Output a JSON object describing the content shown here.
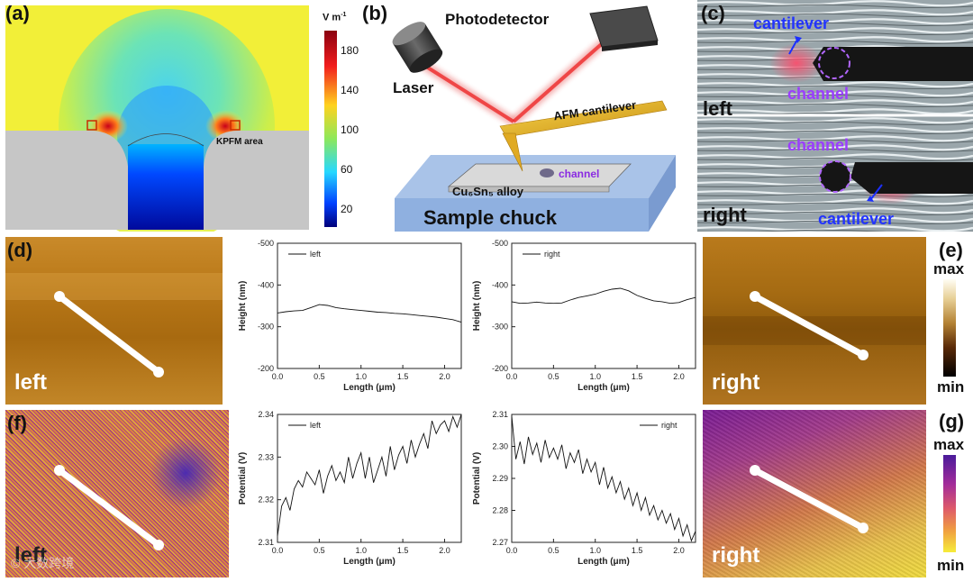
{
  "panel_a": {
    "label": "(a)",
    "unit": "V m",
    "unit_exp": "-1",
    "colorbar_ticks": [
      "180",
      "140",
      "100",
      "60",
      "20"
    ],
    "area_label": "KPFM area"
  },
  "panel_b": {
    "label": "(b)",
    "photodetector": "Photodetector",
    "laser": "Laser",
    "afm": "AFM cantilever",
    "alloy": "Cu₆Sn₅ alloy",
    "channel": "channel",
    "chuck": "Sample chuck"
  },
  "panel_c": {
    "label": "(c)",
    "top_cantilever": "cantilever",
    "top_channel": "channel",
    "top_side": "left",
    "bottom_channel": "channel",
    "bottom_cantilever": "cantilever",
    "bottom_side": "right"
  },
  "panel_d": {
    "label": "(d)",
    "side": "left"
  },
  "panel_e": {
    "label": "(e)",
    "side": "right",
    "scale_max": "max",
    "scale_min": "min"
  },
  "panel_f": {
    "label": "(f)",
    "side": "left",
    "watermark": "© 大数跨境"
  },
  "panel_g": {
    "label": "(g)",
    "side": "right",
    "scale_max": "max",
    "scale_min": "min"
  },
  "chart_data": [
    {
      "id": "height-left",
      "type": "line",
      "series_name": "left",
      "xlabel": "Length (μm)",
      "ylabel": "Height (nm)",
      "xlim": [
        0,
        2.2
      ],
      "ylim": [
        -500,
        -200
      ],
      "x_ticks": [
        "0.0",
        "0.5",
        "1.0",
        "1.5",
        "2.0"
      ],
      "y_ticks": [
        "-500",
        "-400",
        "-300",
        "-200"
      ],
      "x": [
        0,
        0.1,
        0.2,
        0.3,
        0.4,
        0.5,
        0.6,
        0.7,
        0.8,
        0.9,
        1.0,
        1.1,
        1.2,
        1.3,
        1.4,
        1.5,
        1.6,
        1.7,
        1.8,
        1.9,
        2.0,
        2.1,
        2.2
      ],
      "values": [
        -333,
        -336,
        -338,
        -339,
        -346,
        -353,
        -351,
        -346,
        -343,
        -341,
        -339,
        -337,
        -335,
        -334,
        -332,
        -331,
        -329,
        -327,
        -325,
        -323,
        -320,
        -317,
        -311
      ]
    },
    {
      "id": "height-right",
      "type": "line",
      "series_name": "right",
      "xlabel": "Length (μm)",
      "ylabel": "Height (nm)",
      "xlim": [
        0,
        2.2
      ],
      "ylim": [
        -500,
        -200
      ],
      "x_ticks": [
        "0.0",
        "0.5",
        "1.0",
        "1.5",
        "2.0"
      ],
      "y_ticks": [
        "-500",
        "-400",
        "-300",
        "-200"
      ],
      "x": [
        0,
        0.1,
        0.2,
        0.3,
        0.4,
        0.5,
        0.6,
        0.7,
        0.8,
        0.9,
        1.0,
        1.1,
        1.2,
        1.3,
        1.4,
        1.5,
        1.6,
        1.7,
        1.8,
        1.9,
        2.0,
        2.1,
        2.2
      ],
      "values": [
        -360,
        -356,
        -357,
        -359,
        -357,
        -356,
        -357,
        -364,
        -370,
        -374,
        -378,
        -385,
        -390,
        -392,
        -386,
        -375,
        -368,
        -362,
        -360,
        -356,
        -358,
        -365,
        -370
      ]
    },
    {
      "id": "potential-left",
      "type": "line",
      "series_name": "left",
      "xlabel": "Length (μm)",
      "ylabel": "Potential (V)",
      "xlim": [
        0,
        2.2
      ],
      "ylim": [
        2.31,
        2.34
      ],
      "x_ticks": [
        "0.0",
        "0.5",
        "1.0",
        "1.5",
        "2.0"
      ],
      "y_ticks": [
        "2.31",
        "2.32",
        "2.33",
        "2.34"
      ],
      "x": [
        0,
        0.05,
        0.1,
        0.15,
        0.2,
        0.25,
        0.3,
        0.35,
        0.4,
        0.45,
        0.5,
        0.55,
        0.6,
        0.65,
        0.7,
        0.75,
        0.8,
        0.85,
        0.9,
        0.95,
        1.0,
        1.05,
        1.1,
        1.15,
        1.2,
        1.25,
        1.3,
        1.35,
        1.4,
        1.45,
        1.5,
        1.55,
        1.6,
        1.65,
        1.7,
        1.75,
        1.8,
        1.85,
        1.9,
        1.95,
        2.0,
        2.05,
        2.1,
        2.15,
        2.2
      ],
      "values": [
        2.3115,
        2.3185,
        2.3205,
        2.3175,
        2.3225,
        2.3245,
        2.323,
        2.3265,
        2.325,
        2.3235,
        2.327,
        2.3215,
        2.3255,
        2.328,
        2.3245,
        2.3265,
        2.324,
        2.33,
        2.325,
        2.3285,
        2.331,
        2.325,
        2.33,
        2.324,
        2.327,
        2.33,
        2.3255,
        2.3325,
        2.327,
        2.3305,
        2.3325,
        2.3285,
        2.334,
        2.33,
        2.333,
        2.3355,
        2.332,
        2.3385,
        2.3355,
        2.3375,
        2.3385,
        2.336,
        2.3395,
        2.337,
        2.34
      ]
    },
    {
      "id": "potential-right",
      "type": "line",
      "series_name": "right",
      "xlabel": "Length (μm)",
      "ylabel": "Potential (V)",
      "xlim": [
        0,
        2.2
      ],
      "ylim": [
        2.27,
        2.31
      ],
      "x_ticks": [
        "0.0",
        "0.5",
        "1.0",
        "1.5",
        "2.0"
      ],
      "y_ticks": [
        "2.27",
        "2.28",
        "2.29",
        "2.30",
        "2.31"
      ],
      "x": [
        0,
        0.05,
        0.1,
        0.15,
        0.2,
        0.25,
        0.3,
        0.35,
        0.4,
        0.45,
        0.5,
        0.55,
        0.6,
        0.65,
        0.7,
        0.75,
        0.8,
        0.85,
        0.9,
        0.95,
        1.0,
        1.05,
        1.1,
        1.15,
        1.2,
        1.25,
        1.3,
        1.35,
        1.4,
        1.45,
        1.5,
        1.55,
        1.6,
        1.65,
        1.7,
        1.75,
        1.8,
        1.85,
        1.9,
        1.95,
        2.0,
        2.05,
        2.1,
        2.15,
        2.2
      ],
      "values": [
        2.3095,
        2.296,
        2.3015,
        2.2945,
        2.303,
        2.2975,
        2.301,
        2.295,
        2.302,
        2.2965,
        2.2995,
        2.296,
        2.3005,
        2.293,
        2.298,
        2.295,
        2.299,
        2.2915,
        2.296,
        2.292,
        2.295,
        2.288,
        2.2935,
        2.287,
        2.2905,
        2.2855,
        2.289,
        2.2835,
        2.287,
        2.2815,
        2.2855,
        2.28,
        2.284,
        2.2785,
        2.2815,
        2.277,
        2.28,
        2.276,
        2.279,
        2.274,
        2.2775,
        2.272,
        2.2755,
        2.2705,
        2.2735
      ]
    }
  ]
}
